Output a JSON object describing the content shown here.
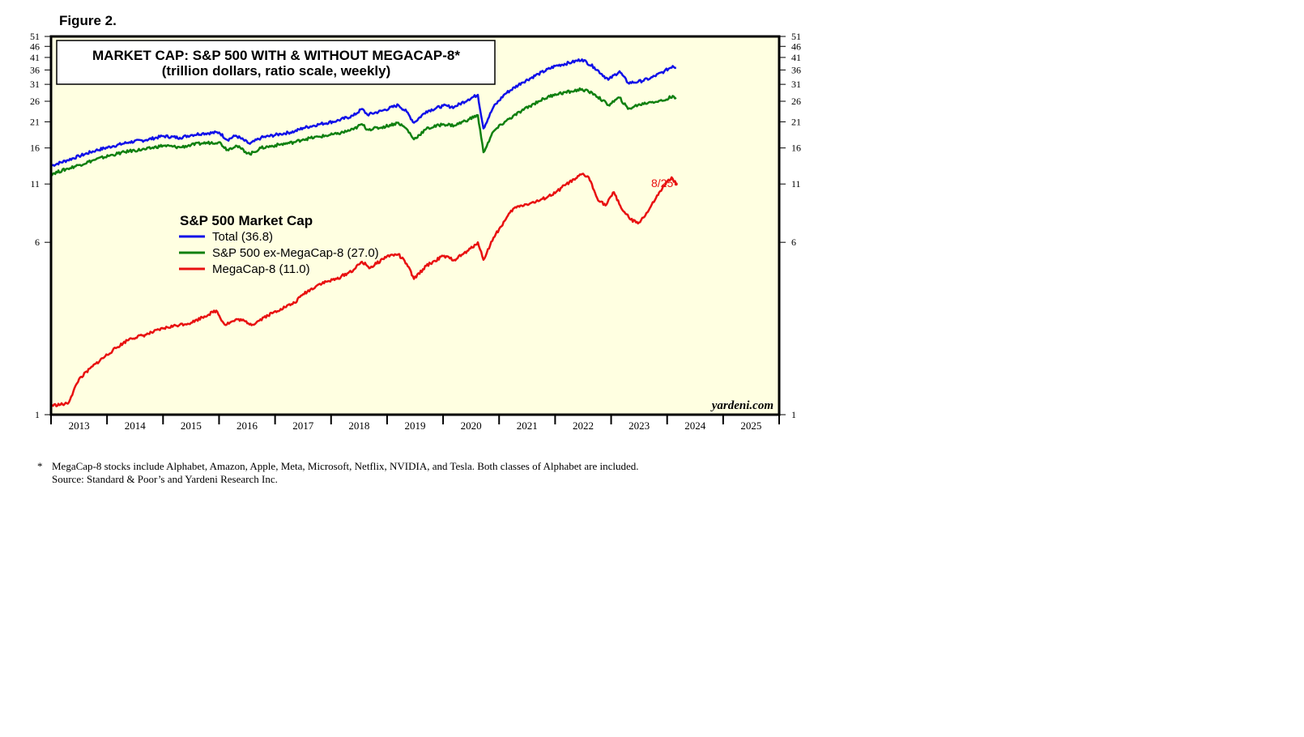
{
  "figure_label": "Figure 2.",
  "footnote": {
    "marker": "*",
    "text": "MegaCap-8 stocks include Alphabet, Amazon, Apple, Meta, Microsoft, Netflix, NVIDIA, and Tesla. Both classes of Alphabet are included.",
    "source": "Source: Standard & Poor’s and Yardeni Research Inc."
  },
  "colors": {
    "total": "#1010e8",
    "ex": "#108010",
    "mega": "#e81010",
    "plot_bg": "#ffffe1"
  },
  "chart_data": {
    "type": "line",
    "scale": "log",
    "title": "MARKET CAP: S&P 500 WITH & WITHOUT MEGACAP-8*",
    "subtitle": "(trillion dollars, ratio scale, weekly)",
    "legend_title": "S&P 500 Market Cap",
    "legend_placement": "left-middle",
    "watermark": "yardeni.com",
    "last_date_label": "8/25",
    "x_range": [
      2012.5,
      2025.5
    ],
    "ylim": [
      1,
      51
    ],
    "y_ticks": [
      1,
      6,
      11,
      16,
      21,
      26,
      31,
      36,
      41,
      46,
      51
    ],
    "y_tick_labels": [
      "1",
      "6",
      "11",
      "16",
      "21",
      "26",
      "31",
      "36",
      "41",
      "46",
      "51"
    ],
    "x_ticks": [
      "2013",
      "2014",
      "2015",
      "2016",
      "2017",
      "2018",
      "2019",
      "2020",
      "2021",
      "2022",
      "2023",
      "2024",
      "2025"
    ],
    "series": [
      {
        "name": "Total (36.8)",
        "key": "total",
        "points": [
          [
            2012.5,
            13.3
          ],
          [
            2012.8,
            14.1
          ],
          [
            2013.0,
            14.7
          ],
          [
            2013.3,
            15.6
          ],
          [
            2013.6,
            16.3
          ],
          [
            2013.9,
            17.0
          ],
          [
            2014.2,
            17.4
          ],
          [
            2014.5,
            18.1
          ],
          [
            2014.8,
            17.8
          ],
          [
            2015.0,
            18.3
          ],
          [
            2015.2,
            18.6
          ],
          [
            2015.5,
            18.8
          ],
          [
            2015.65,
            17.4
          ],
          [
            2015.8,
            18.2
          ],
          [
            2016.05,
            16.7
          ],
          [
            2016.25,
            17.8
          ],
          [
            2016.6,
            18.5
          ],
          [
            2016.85,
            19.0
          ],
          [
            2017.0,
            19.7
          ],
          [
            2017.3,
            20.5
          ],
          [
            2017.6,
            21.2
          ],
          [
            2017.9,
            22.4
          ],
          [
            2018.05,
            24.0
          ],
          [
            2018.15,
            22.6
          ],
          [
            2018.4,
            23.5
          ],
          [
            2018.7,
            25.0
          ],
          [
            2018.85,
            23.3
          ],
          [
            2018.98,
            20.8
          ],
          [
            2019.2,
            23.4
          ],
          [
            2019.5,
            24.8
          ],
          [
            2019.7,
            24.5
          ],
          [
            2019.95,
            26.5
          ],
          [
            2020.12,
            27.8
          ],
          [
            2020.22,
            19.6
          ],
          [
            2020.4,
            24.5
          ],
          [
            2020.6,
            28.0
          ],
          [
            2020.9,
            31.5
          ],
          [
            2021.2,
            34.5
          ],
          [
            2021.5,
            37.5
          ],
          [
            2021.8,
            39.0
          ],
          [
            2021.98,
            40.2
          ],
          [
            2022.2,
            37.0
          ],
          [
            2022.45,
            32.5
          ],
          [
            2022.65,
            35.5
          ],
          [
            2022.8,
            31.5
          ],
          [
            2022.98,
            31.8
          ],
          [
            2023.2,
            33.0
          ],
          [
            2023.45,
            35.5
          ],
          [
            2023.6,
            37.5
          ],
          [
            2023.66,
            36.8
          ]
        ]
      },
      {
        "name": "S&P 500 ex-MegaCap-8 (27.0)",
        "key": "ex",
        "points": [
          [
            2012.5,
            12.2
          ],
          [
            2012.8,
            12.9
          ],
          [
            2013.0,
            13.4
          ],
          [
            2013.3,
            14.2
          ],
          [
            2013.6,
            14.9
          ],
          [
            2013.9,
            15.5
          ],
          [
            2014.2,
            15.8
          ],
          [
            2014.5,
            16.4
          ],
          [
            2014.8,
            16.1
          ],
          [
            2015.0,
            16.5
          ],
          [
            2015.2,
            16.8
          ],
          [
            2015.5,
            17.0
          ],
          [
            2015.65,
            15.7
          ],
          [
            2015.8,
            16.4
          ],
          [
            2016.05,
            15.0
          ],
          [
            2016.25,
            16.0
          ],
          [
            2016.6,
            16.6
          ],
          [
            2016.85,
            17.0
          ],
          [
            2017.0,
            17.5
          ],
          [
            2017.3,
            18.0
          ],
          [
            2017.6,
            18.5
          ],
          [
            2017.9,
            19.4
          ],
          [
            2018.05,
            20.5
          ],
          [
            2018.15,
            19.4
          ],
          [
            2018.4,
            19.8
          ],
          [
            2018.7,
            20.8
          ],
          [
            2018.85,
            19.5
          ],
          [
            2018.98,
            17.5
          ],
          [
            2019.2,
            19.5
          ],
          [
            2019.5,
            20.5
          ],
          [
            2019.7,
            20.2
          ],
          [
            2019.95,
            21.5
          ],
          [
            2020.12,
            22.5
          ],
          [
            2020.22,
            15.3
          ],
          [
            2020.4,
            19.0
          ],
          [
            2020.6,
            21.0
          ],
          [
            2020.9,
            23.5
          ],
          [
            2021.2,
            26.0
          ],
          [
            2021.5,
            28.0
          ],
          [
            2021.8,
            28.8
          ],
          [
            2021.98,
            29.5
          ],
          [
            2022.2,
            28.0
          ],
          [
            2022.45,
            25.0
          ],
          [
            2022.65,
            27.0
          ],
          [
            2022.8,
            24.0
          ],
          [
            2022.98,
            25.0
          ],
          [
            2023.2,
            25.8
          ],
          [
            2023.45,
            26.2
          ],
          [
            2023.6,
            27.5
          ],
          [
            2023.66,
            27.0
          ]
        ]
      },
      {
        "name": "MegaCap-8 (11.0)",
        "key": "mega",
        "points": [
          [
            2012.5,
            1.1
          ],
          [
            2012.8,
            1.12
          ],
          [
            2013.0,
            1.45
          ],
          [
            2013.3,
            1.7
          ],
          [
            2013.6,
            1.95
          ],
          [
            2013.9,
            2.2
          ],
          [
            2014.2,
            2.3
          ],
          [
            2014.5,
            2.45
          ],
          [
            2014.8,
            2.55
          ],
          [
            2015.0,
            2.6
          ],
          [
            2015.2,
            2.75
          ],
          [
            2015.45,
            2.95
          ],
          [
            2015.6,
            2.55
          ],
          [
            2015.85,
            2.7
          ],
          [
            2016.1,
            2.55
          ],
          [
            2016.3,
            2.75
          ],
          [
            2016.6,
            3.0
          ],
          [
            2016.85,
            3.2
          ],
          [
            2017.0,
            3.5
          ],
          [
            2017.3,
            3.9
          ],
          [
            2017.6,
            4.1
          ],
          [
            2017.9,
            4.5
          ],
          [
            2018.05,
            4.9
          ],
          [
            2018.2,
            4.6
          ],
          [
            2018.5,
            5.2
          ],
          [
            2018.7,
            5.3
          ],
          [
            2018.85,
            4.8
          ],
          [
            2018.98,
            4.1
          ],
          [
            2019.2,
            4.7
          ],
          [
            2019.5,
            5.2
          ],
          [
            2019.7,
            5.0
          ],
          [
            2019.95,
            5.5
          ],
          [
            2020.12,
            6.0
          ],
          [
            2020.22,
            5.0
          ],
          [
            2020.4,
            6.3
          ],
          [
            2020.6,
            7.5
          ],
          [
            2020.75,
            8.5
          ],
          [
            2020.9,
            8.8
          ],
          [
            2021.2,
            9.2
          ],
          [
            2021.5,
            10.0
          ],
          [
            2021.7,
            11.0
          ],
          [
            2021.85,
            11.5
          ],
          [
            2021.98,
            12.2
          ],
          [
            2022.1,
            11.8
          ],
          [
            2022.25,
            9.5
          ],
          [
            2022.4,
            8.8
          ],
          [
            2022.55,
            10.1
          ],
          [
            2022.7,
            8.4
          ],
          [
            2022.85,
            7.6
          ],
          [
            2022.98,
            7.3
          ],
          [
            2023.15,
            8.2
          ],
          [
            2023.3,
            9.5
          ],
          [
            2023.45,
            10.8
          ],
          [
            2023.58,
            11.8
          ],
          [
            2023.66,
            11.0
          ]
        ]
      }
    ]
  }
}
